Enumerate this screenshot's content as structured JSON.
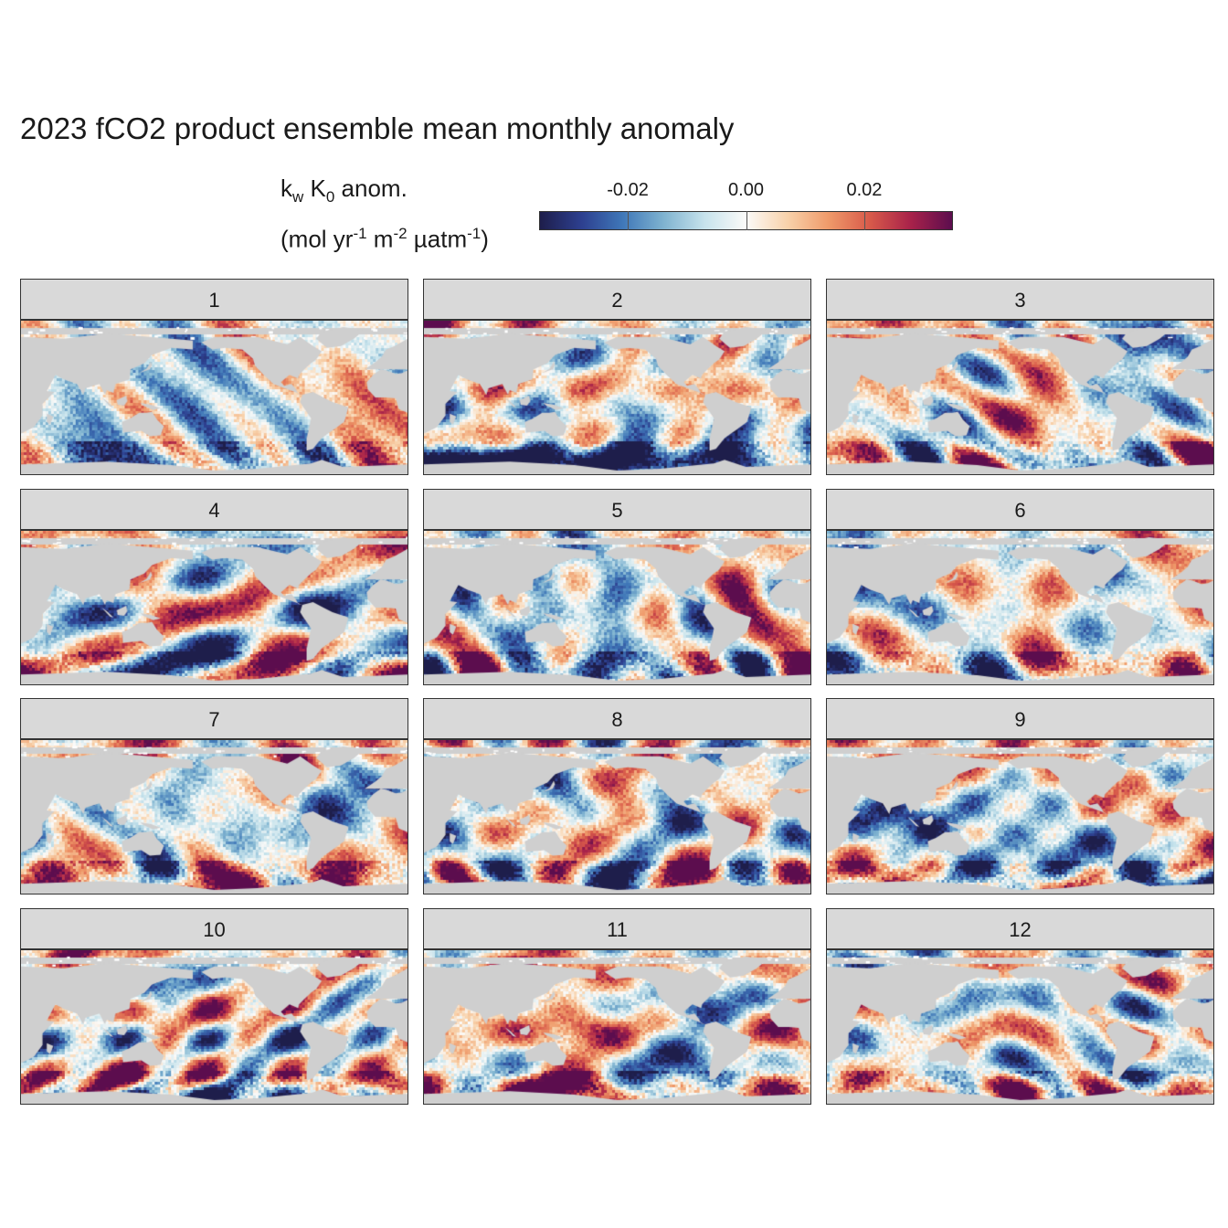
{
  "title": "2023 fCO2 product ensemble mean monthly anomaly",
  "legend": {
    "title_k": "k",
    "title_w": "w",
    "title_K": " K",
    "title_0": "0",
    "title_rest": " anom.",
    "unit_open": "(mol yr",
    "unit_exp1": "-1",
    "unit_m": " m",
    "unit_exp2": "-2",
    "unit_uatm": " µatm",
    "unit_exp3": "-1",
    "unit_close": ")",
    "ticks": [
      "-0.02",
      "0.00",
      "0.02"
    ],
    "tick_values": [
      -0.02,
      0.0,
      0.02
    ],
    "range": [
      -0.035,
      0.035
    ],
    "palette": [
      "#1e1e4b",
      "#2d3f8f",
      "#3f77b8",
      "#7fb3d0",
      "#c7e3ec",
      "#fbfaf8",
      "#f8d2ab",
      "#ef9a6a",
      "#d85a4a",
      "#a8224a",
      "#5c0d4e"
    ]
  },
  "chart_data": {
    "type": "heatmap",
    "title": "2023 fCO2 product ensemble mean monthly anomaly",
    "fill_variable": "kw K0 anom. (mol yr-1 m-2 µatm-1)",
    "facet_variable": "month",
    "facets": [
      "1",
      "2",
      "3",
      "4",
      "5",
      "6",
      "7",
      "8",
      "9",
      "10",
      "11",
      "12"
    ],
    "colorbar_range": [
      -0.035,
      0.035
    ],
    "colorbar_ticks": [
      -0.02,
      0.0,
      0.02
    ],
    "land_color": "#cfcfcf",
    "grid": false,
    "legend_placement": "top"
  }
}
